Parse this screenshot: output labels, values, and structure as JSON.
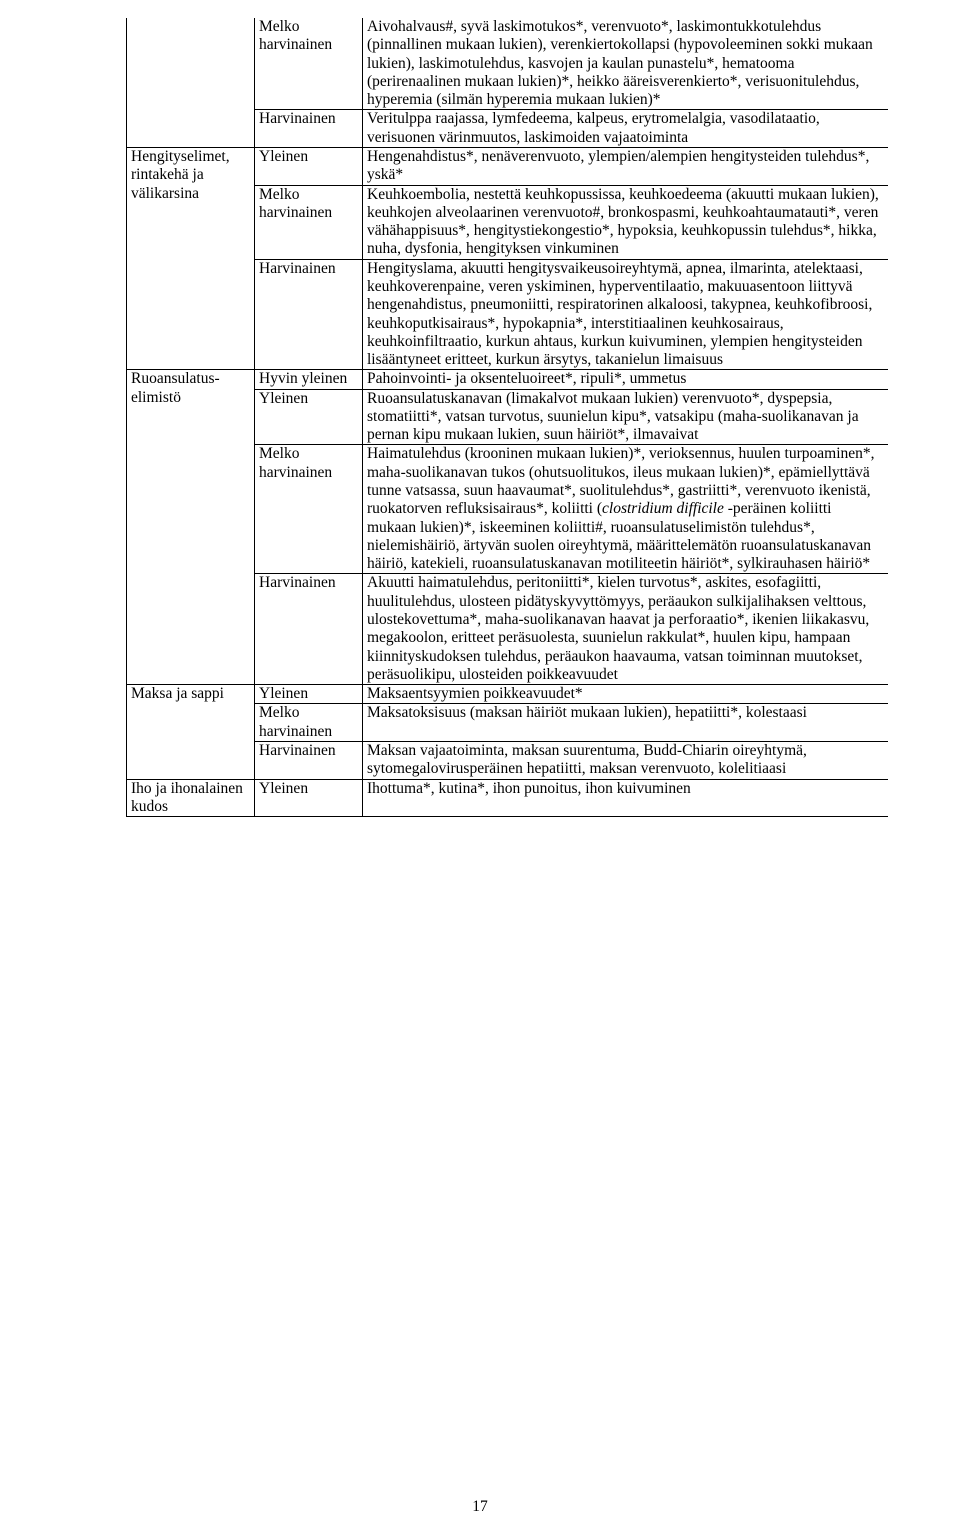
{
  "font_family": "Times New Roman",
  "base_font_size_pt": 12,
  "page_bg": "#ffffff",
  "text_color": "#000000",
  "border_color": "#000000",
  "page_number": "17",
  "rows": [
    {
      "soc": "",
      "freq": "Melko harvinainen",
      "desc": "Aivohalvaus#, syvä laskimotukos*, verenvuoto*, laskimontukkotulehdus (pinnallinen mukaan lukien), verenkiertokollapsi (hypovoleeminen sokki mukaan lukien), laskimotulehdus, kasvojen ja kaulan punastelu*, hematooma (perirenaalinen mukaan lukien)*, heikko ääreisverenkierto*, verisuonitulehdus, hyperemia (silmän hyperemia mukaan lukien)*"
    },
    {
      "soc": "",
      "freq": "Harvinainen",
      "desc": "Veritulppa raajassa, lymfedeema, kalpeus, erytromelalgia, vasodilataatio, verisuonen värinmuutos, laskimoiden vajaatoiminta"
    },
    {
      "soc": "Hengityselimet, rintakehä ja välikarsina",
      "freq": "Yleinen",
      "desc": "Hengenahdistus*, nenäverenvuoto, ylempien/alempien hengitysteiden tulehdus*, yskä*"
    },
    {
      "soc": "",
      "freq": "Melko harvinainen",
      "desc": "Keuhkoembolia, nestettä keuhkopussissa, keuhkoedeema (akuutti mukaan lukien), keuhkojen alveolaarinen verenvuoto#, bronkospasmi, keuhkoahtaumatauti*, veren vähähappisuus*, hengitystiekongestio*, hypoksia, keuhkopussin tulehdus*, hikka, nuha, dysfonia, hengityksen vinkuminen"
    },
    {
      "soc": "",
      "freq": "Harvinainen",
      "desc": "Hengityslama, akuutti hengitysvaikeusoireyhtymä, apnea, ilmarinta, atelektaasi, keuhkoverenpaine, veren yskiminen, hyperventilaatio, makuuasentoon liittyvä hengenahdistus, pneumoniitti, respiratorinen alkaloosi, takypnea, keuhkofibroosi, keuhkoputkisairaus*, hypokapnia*, interstitiaalinen keuhkosairaus, keuhkoinfiltraatio, kurkun ahtaus, kurkun kuivuminen, ylempien hengitysteiden lisääntyneet eritteet, kurkun ärsytys, takanielun limaisuus"
    },
    {
      "soc": "Ruoansulatus-elimistö",
      "freq": "Hyvin yleinen",
      "desc": "Pahoinvointi- ja oksenteluoireet*, ripuli*, ummetus"
    },
    {
      "soc": "",
      "freq": "Yleinen",
      "desc": "Ruoansulatuskanavan (limakalvot mukaan lukien) verenvuoto*, dyspepsia, stomatiitti*, vatsan turvotus, suunielun kipu*, vatsakipu (maha-suolikanavan ja pernan kipu mukaan lukien, suun häiriöt*, ilmavaivat"
    },
    {
      "soc": "",
      "freq": "Melko harvinainen",
      "desc": "Haimatulehdus (krooninen mukaan lukien)*, verioksennus, huulen turpoaminen*, maha-suolikanavan tukos (ohutsuolitukos, ileus mukaan lukien)*, epämiellyttävä tunne vatsassa, suun haavaumat*, suolitulehdus*, gastriitti*, verenvuoto ikenistä, ruokatorven refluksisairaus*, koliitti (clostridium difficile -peräinen koliitti mukaan lukien)*, iskeeminen koliitti#, ruoansulatuselimistön tulehdus*, nielemishäiriö, ärtyvän suolen oireyhtymä, määrittelemätön ruoansulatuskanavan häiriö, katekieli, ruoansulatuskanavan motiliteetin häiriöt*, sylkirauhasen häiriö*"
    },
    {
      "soc": "",
      "freq": "Harvinainen",
      "desc": "Akuutti haimatulehdus, peritoniitti*, kielen turvotus*, askites, esofagiitti, huulitulehdus, ulosteen pidätyskyvyttömyys, peräaukon sulkijalihaksen velttous, ulostekovettuma*, maha-suolikanavan haavat ja perforaatio*, ikenien liikakasvu, megakoolon, eritteet peräsuolesta, suunielun rakkulat*, huulen kipu, hampaan kiinnityskudoksen tulehdus, peräaukon haavauma, vatsan toiminnan muutokset, peräsuolikipu, ulosteiden poikkeavuudet"
    },
    {
      "soc": "Maksa ja sappi",
      "freq": "Yleinen",
      "desc": "Maksaentsyymien poikkeavuudet*"
    },
    {
      "soc": "",
      "freq": "Melko harvinainen",
      "desc": "Maksatoksisuus (maksan häiriöt mukaan lukien), hepatiitti*, kolestaasi"
    },
    {
      "soc": "",
      "freq": "Harvinainen",
      "desc": "Maksan vajaatoiminta, maksan suurentuma, Budd-Chiarin oireyhtymä, sytomegalovirusperäinen hepatiitti, maksan verenvuoto, kolelitiaasi"
    },
    {
      "soc": "Iho ja ihonalainen kudos",
      "freq": "Yleinen",
      "desc": "Ihottuma*, kutina*, ihon punoitus, ihon kuivuminen"
    }
  ]
}
